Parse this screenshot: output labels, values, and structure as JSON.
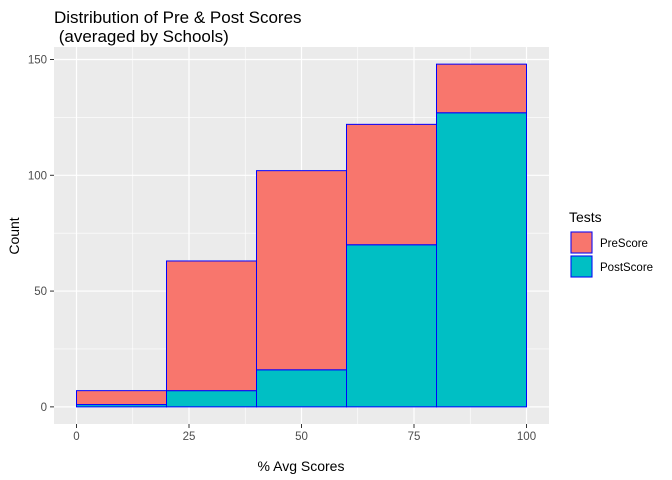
{
  "chart_data": {
    "type": "bar",
    "stacked": true,
    "title_line1": "Distribution of Pre & Post Scores",
    "title_line2": " (averaged by Schools)",
    "xlabel": "% Avg Scores",
    "ylabel": "Count",
    "xlim": [
      -5,
      105
    ],
    "ylim": [
      -7.4,
      155.4
    ],
    "x_ticks": [
      0,
      25,
      50,
      75,
      100
    ],
    "x_tick_labels": [
      "0",
      "25",
      "50",
      "75",
      "100"
    ],
    "y_ticks": [
      0,
      50,
      100,
      150
    ],
    "y_tick_labels": [
      "0",
      "50",
      "100",
      "150"
    ],
    "bins": [
      [
        0,
        20
      ],
      [
        20,
        40
      ],
      [
        40,
        60
      ],
      [
        60,
        80
      ],
      [
        80,
        100
      ]
    ],
    "series": [
      {
        "name": "PostScore",
        "values": [
          1,
          7,
          16,
          70,
          127
        ],
        "color": "#00BFC4"
      },
      {
        "name": "PreScore",
        "values": [
          6,
          56,
          86,
          52,
          21
        ],
        "color": "#F8766D"
      }
    ],
    "bar_outline_color": "#0000FF",
    "panel_background": "#EBEBEB",
    "grid": true,
    "grid_color": "#FFFFFF",
    "legend": {
      "title": "Tests",
      "position": "right",
      "items": [
        {
          "label": "PreScore",
          "color": "#F8766D"
        },
        {
          "label": "PostScore",
          "color": "#00BFC4"
        }
      ]
    }
  }
}
